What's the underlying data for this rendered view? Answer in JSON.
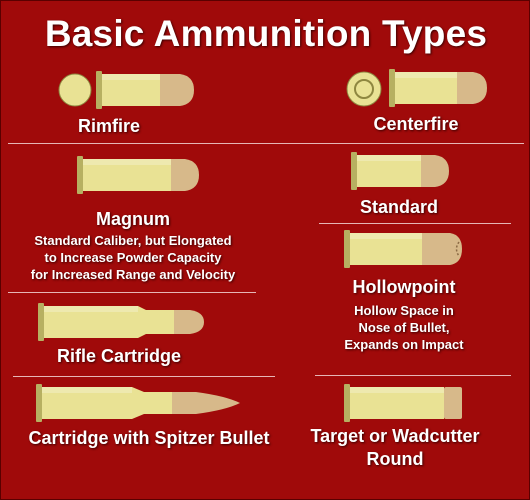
{
  "title": "Basic Ammunition Types",
  "colors": {
    "background": "#a00a0a",
    "casing": "#e9e294",
    "casing_dark": "#b7b061",
    "bullet": "#d7b98a",
    "bullet_dark": "#b08a5c",
    "text": "#ffffff"
  },
  "types": {
    "rimfire": {
      "label": "Rimfire"
    },
    "centerfire": {
      "label": "Centerfire"
    },
    "magnum": {
      "label": "Magnum",
      "description": [
        "Standard Caliber, but Elongated",
        "to Increase Powder Capacity",
        "for Increased Range and Velocity"
      ]
    },
    "standard": {
      "label": "Standard"
    },
    "hollowpoint": {
      "label": "Hollowpoint",
      "description": [
        "Hollow Space in",
        "Nose of Bullet,",
        "Expands on Impact"
      ]
    },
    "rifle": {
      "label": "Rifle Cartridge"
    },
    "spitzer": {
      "label": "Cartridge with Spitzer Bullet"
    },
    "wadcutter": {
      "label": [
        "Target or Wadcutter",
        "Round"
      ]
    }
  }
}
